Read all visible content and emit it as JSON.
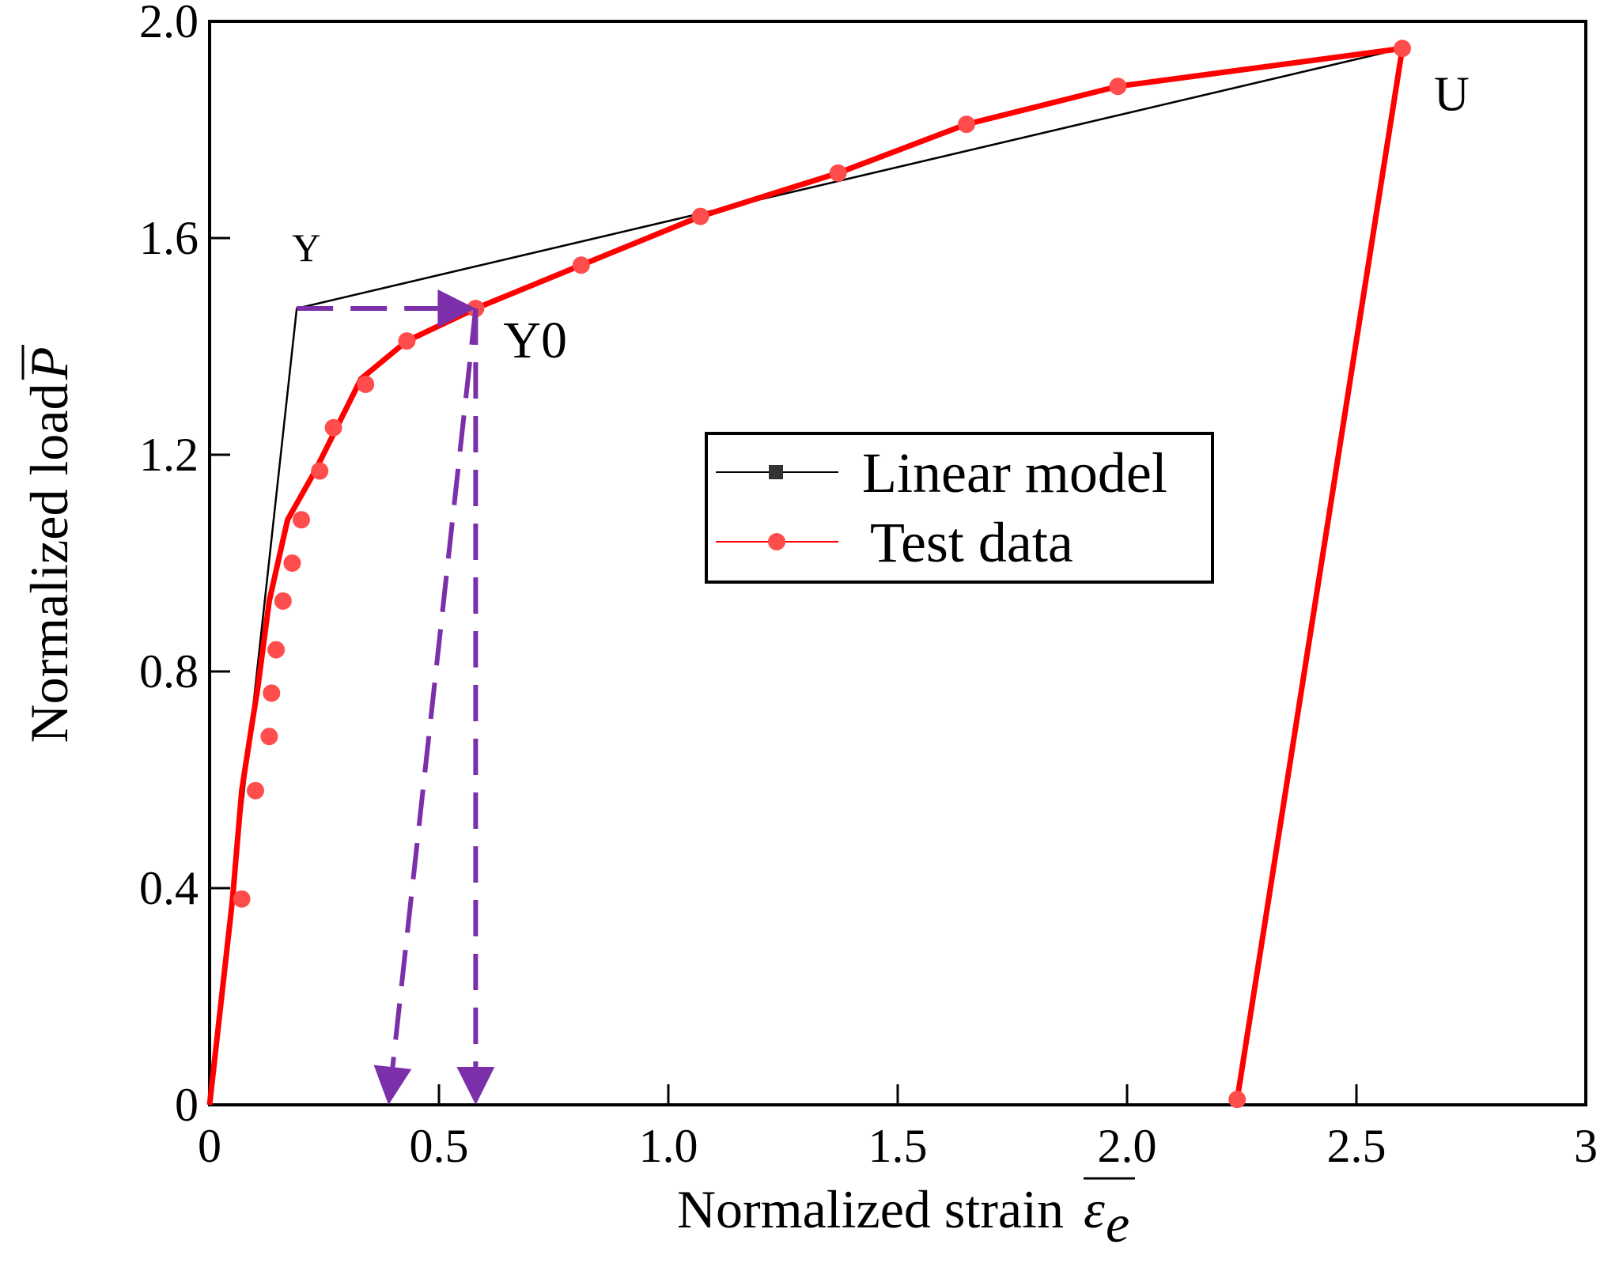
{
  "chart_data": {
    "type": "line",
    "xlabel": "Normalized strain",
    "xlabel_symbol": "ε",
    "xlabel_subscript": "e",
    "ylabel": "Normalized load",
    "ylabel_symbol": "P",
    "xlim": [
      0,
      3
    ],
    "ylim": [
      0,
      2.0
    ],
    "xticks": [
      0,
      0.5,
      1.0,
      1.5,
      2.0,
      2.5,
      3
    ],
    "xtick_labels": [
      "0",
      "0.5",
      "1.0",
      "1.5",
      "2.0",
      "2.5",
      "3"
    ],
    "yticks": [
      0,
      0.4,
      0.8,
      1.2,
      1.6,
      2.0
    ],
    "ytick_labels": [
      "0",
      "0.4",
      "0.8",
      "1.2",
      "1.6",
      "2.0"
    ],
    "legend_position": "center-right",
    "series": [
      {
        "name": "Linear model",
        "color": "#000000",
        "marker": "square",
        "x": [
          0,
          0.19,
          2.6
        ],
        "y": [
          0,
          1.47,
          1.95
        ]
      },
      {
        "name": "Test data",
        "color": "#ff0000",
        "marker": "circle",
        "curve_x": [
          0,
          0.05,
          0.07,
          0.09,
          0.105,
          0.13,
          0.17,
          0.23,
          0.33,
          0.43,
          0.58,
          0.81,
          1.07,
          1.37,
          1.65,
          1.98,
          2.6,
          2.24
        ],
        "curve_y": [
          0,
          0.38,
          0.58,
          0.69,
          0.77,
          0.93,
          1.08,
          1.17,
          1.34,
          1.41,
          1.47,
          1.55,
          1.64,
          1.72,
          1.81,
          1.88,
          1.95,
          0.01
        ],
        "markers_x": [
          0.07,
          0.1,
          0.13,
          0.135,
          0.145,
          0.16,
          0.18,
          0.2,
          0.24,
          0.27,
          0.34,
          0.43,
          0.58,
          0.81,
          1.07,
          1.37,
          1.65,
          1.98,
          2.6,
          2.24
        ],
        "markers_y": [
          0.38,
          0.58,
          0.68,
          0.76,
          0.84,
          0.93,
          1.0,
          1.08,
          1.17,
          1.25,
          1.33,
          1.41,
          1.47,
          1.55,
          1.64,
          1.72,
          1.81,
          1.88,
          1.95,
          0.01
        ]
      }
    ],
    "annotations": [
      {
        "text": "Y",
        "x": 0.19,
        "y": 1.47
      },
      {
        "text": "Y0",
        "x": 0.58,
        "y": 1.47
      },
      {
        "text": "U",
        "x": 2.6,
        "y": 1.95
      }
    ],
    "arrows": [
      {
        "style": "dashed",
        "color": "#7b2fa8",
        "from": [
          0.19,
          1.47
        ],
        "to": [
          0.58,
          1.47
        ]
      },
      {
        "style": "dashed",
        "color": "#7b2fa8",
        "from": [
          0.58,
          1.47
        ],
        "to": [
          0.39,
          0.0
        ]
      },
      {
        "style": "dashed",
        "color": "#7b2fa8",
        "from": [
          0.58,
          1.47
        ],
        "to": [
          0.58,
          0.0
        ]
      }
    ]
  }
}
